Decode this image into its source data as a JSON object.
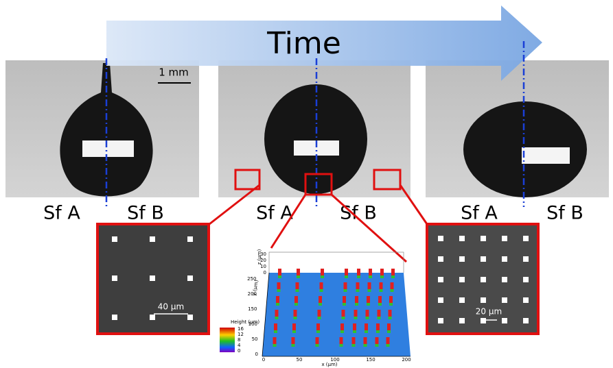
{
  "header": {
    "title": "Time"
  },
  "panels": [
    {
      "scale_bar": "1 mm",
      "left_label": "Sf A",
      "right_label": "Sf B"
    },
    {
      "left_label": "Sf A",
      "right_label": "Sf B"
    },
    {
      "left_label": "Sf A",
      "right_label": "Sf B"
    }
  ],
  "insets": [
    {
      "scale_bar": "40 µm"
    },
    {
      "scale_bar": "20 µm"
    }
  ],
  "plot": {
    "colorbar_title": "Height (µm)",
    "colorbar_ticks": [
      "16",
      "12",
      "8",
      "4",
      "0"
    ],
    "x_label": "x (µm)",
    "y_label": "y (µm)",
    "z_label": "z (µm)",
    "x_ticks": [
      "0",
      "50",
      "100",
      "150",
      "200"
    ],
    "y_ticks": [
      "0",
      "50",
      "100",
      "150",
      "200",
      "250"
    ],
    "z_ticks": [
      "0",
      "10",
      "20",
      "30"
    ]
  }
}
